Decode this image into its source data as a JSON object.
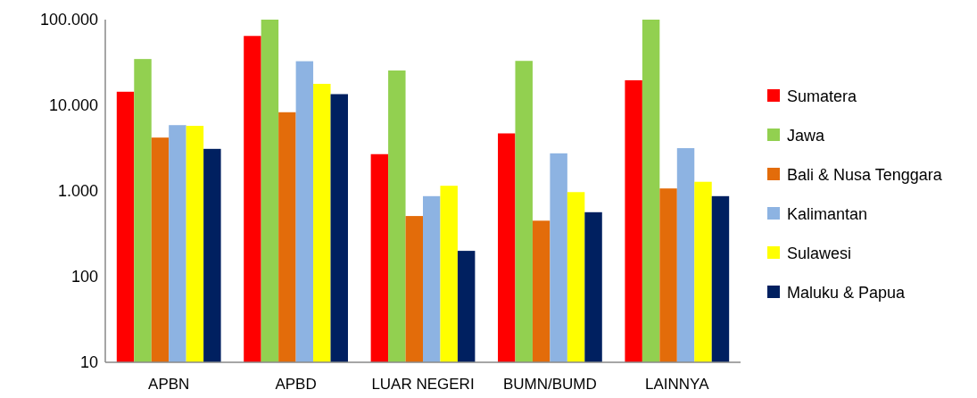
{
  "chart_data": {
    "type": "bar",
    "categories": [
      "APBN",
      "APBD",
      "LUAR NEGERI",
      "BUMN/BUMD",
      "LAINNYA"
    ],
    "series": [
      {
        "name": "Sumatera",
        "color": "#ff0000",
        "values": [
          14400,
          64500,
          2690,
          4700,
          19600
        ]
      },
      {
        "name": "Jawa",
        "color": "#92d050",
        "values": [
          34700,
          100000,
          25500,
          33000,
          100000
        ]
      },
      {
        "name": "Bali & Nusa Tenggara",
        "color": "#e36c0a",
        "values": [
          4200,
          8300,
          510,
          450,
          1070
        ]
      },
      {
        "name": "Kalimantan",
        "color": "#8db3e2",
        "values": [
          5870,
          32700,
          870,
          2750,
          3160
        ]
      },
      {
        "name": "Sulawesi",
        "color": "#ffff00",
        "values": [
          5760,
          17800,
          1150,
          970,
          1280
        ]
      },
      {
        "name": "Maluku & Papua",
        "color": "#002060",
        "values": [
          3100,
          13500,
          200,
          565,
          870
        ]
      }
    ],
    "log": true,
    "ylim": [
      10,
      100000
    ],
    "yticks": [
      10,
      100,
      {
        "value": 1000,
        "label": "1.000"
      },
      {
        "value": 10000,
        "label": "10.000"
      },
      {
        "value": 100000,
        "label": "100.000"
      }
    ],
    "grid": false,
    "legend": "right"
  }
}
